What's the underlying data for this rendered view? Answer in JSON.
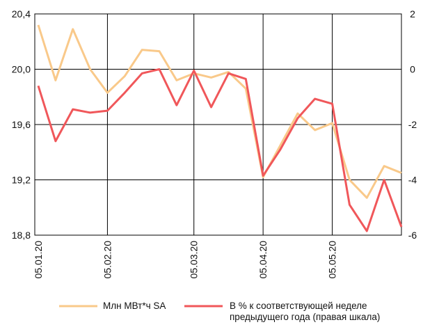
{
  "chart_data": {
    "type": "line",
    "categories": [
      "05.01.20",
      null,
      null,
      null,
      "05.02.20",
      null,
      null,
      null,
      null,
      "05.03.20",
      null,
      null,
      null,
      "05.04.20",
      null,
      null,
      null,
      "05.05.20",
      null,
      null,
      null,
      null
    ],
    "series": [
      {
        "name": "Млн МВт*ч SA",
        "color": "#f9c98a",
        "values": [
          20.32,
          19.92,
          20.29,
          20.0,
          19.83,
          19.95,
          20.14,
          20.13,
          19.92,
          19.97,
          19.94,
          19.98,
          19.86,
          19.22,
          19.45,
          19.68,
          19.56,
          19.61,
          19.2,
          19.07,
          19.3,
          19.25
        ]
      },
      {
        "name": "В % к соответствующей неделе предыдущего года (правая шкала)",
        "color": "#f0575a",
        "axis": "y2",
        "values": [
          -0.6,
          -2.6,
          -1.45,
          -1.57,
          -1.5,
          -0.85,
          -0.15,
          0,
          -1.3,
          -0.05,
          -1.37,
          -0.15,
          -0.35,
          -3.85,
          -2.9,
          -1.77,
          -1.07,
          -1.25,
          -4.9,
          -5.85,
          -4.0,
          -5.7
        ]
      }
    ],
    "ylim": [
      18.8,
      20.4
    ],
    "yticks": [
      {
        "value": 18.8,
        "label": "18,8"
      },
      {
        "value": 19.2,
        "label": "19,2"
      },
      {
        "value": 19.6,
        "label": "19,6"
      },
      {
        "value": 20.0,
        "label": "20,0"
      },
      {
        "value": 20.4,
        "label": "20,4"
      }
    ],
    "y2lim": [
      -6,
      2
    ],
    "y2ticks": [
      -6,
      -4,
      -2,
      0,
      2
    ],
    "grid": true
  }
}
